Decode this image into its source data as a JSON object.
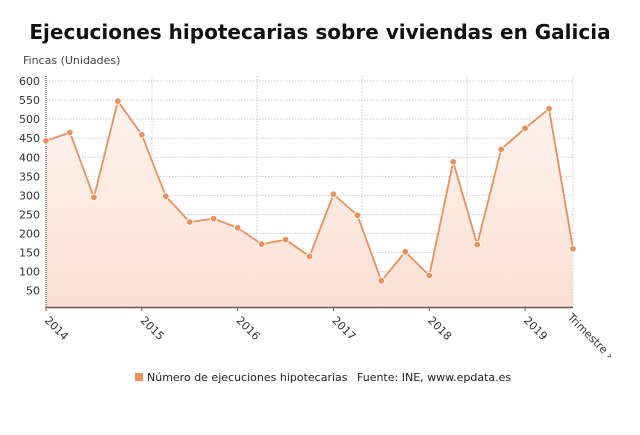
{
  "chart_data": {
    "type": "area",
    "title": "Ejecuciones hipotecarias sobre viviendas en Galicia",
    "ylabel": "Fincas (Unidades)",
    "xlabel": "Trimestre ›",
    "ylim": [
      0,
      600
    ],
    "yticks": [
      50,
      100,
      150,
      200,
      250,
      300,
      350,
      400,
      450,
      500,
      550,
      600
    ],
    "x_tick_labels": [
      "2014",
      "2015",
      "2016",
      "2017",
      "2018",
      "2019"
    ],
    "grid": true,
    "legend_position": "bottom",
    "x": [
      "2014 T1",
      "2014 T2",
      "2014 T3",
      "2014 T4",
      "2015 T1",
      "2015 T2",
      "2015 T3",
      "2015 T4",
      "2016 T1",
      "2016 T2",
      "2016 T3",
      "2016 T4",
      "2017 T1",
      "2017 T2",
      "2017 T3",
      "2017 T4",
      "2018 T1",
      "2018 T2",
      "2018 T3",
      "2018 T4",
      "2019 T1",
      "2019 T2",
      "2019 T3"
    ],
    "series": [
      {
        "name": "Número de ejecuciones hipotecarias",
        "values": [
          443,
          465,
          295,
          547,
          459,
          298,
          230,
          239,
          215,
          172,
          184,
          140,
          303,
          248,
          76,
          152,
          90,
          388,
          171,
          421,
          476,
          527,
          160
        ],
        "color": "#e8905e"
      }
    ],
    "source": "Fuente: INE, www.epdata.es"
  }
}
